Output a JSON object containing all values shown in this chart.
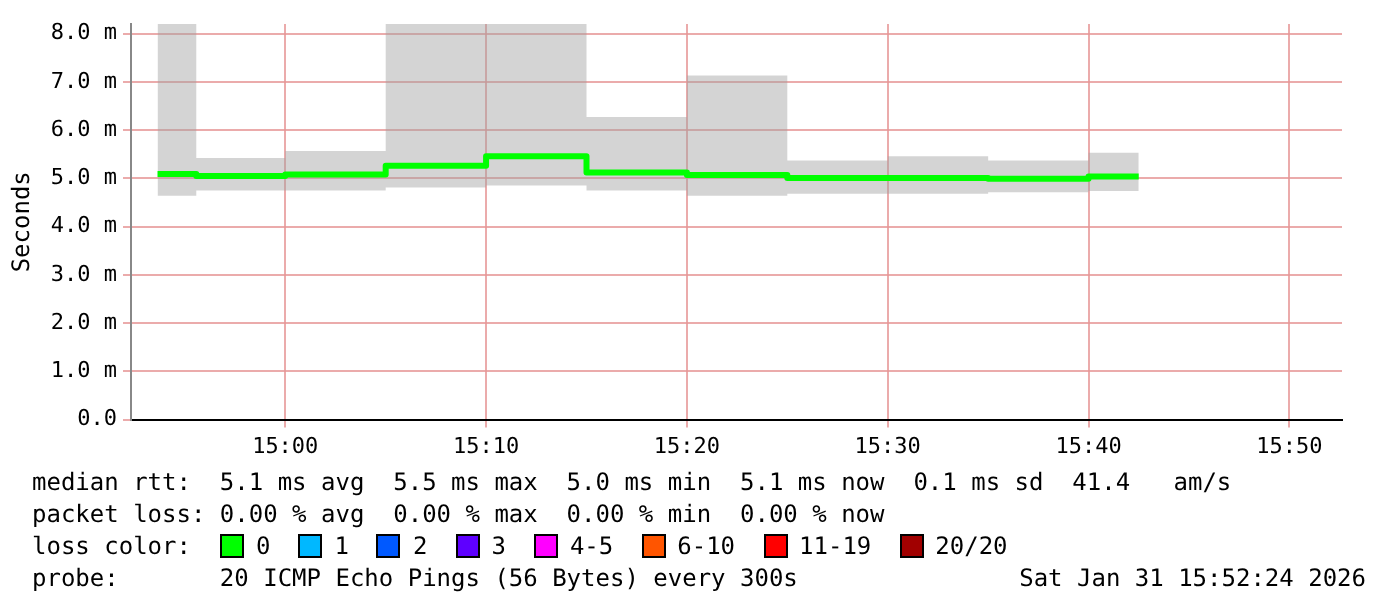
{
  "chart_data": {
    "type": "step",
    "ylabel": "Seconds",
    "x": [
      14.894,
      14.9583,
      15.0417,
      15.125,
      15.2083,
      15.2917,
      15.375,
      15.4583,
      15.5417,
      15.625,
      15.7083
    ],
    "series": [
      {
        "color": "#00ff00",
        "values": [
          5.09,
          5.05,
          5.08,
          5.26,
          5.46,
          5.12,
          5.07,
          5.01,
          5.01,
          4.99,
          5.04
        ],
        "lower": [
          4.64,
          4.75,
          4.75,
          4.81,
          4.85,
          4.75,
          4.64,
          4.68,
          4.68,
          4.71,
          4.74
        ],
        "upper": [
          8.2,
          5.42,
          5.57,
          8.2,
          8.2,
          6.27,
          7.13,
          5.37,
          5.46,
          5.37,
          5.53
        ]
      }
    ],
    "xlim": [
      14.872,
      15.877
    ],
    "xticks": [
      {
        "value": 15.0,
        "label": "15:00"
      },
      {
        "value": 15.1667,
        "label": "15:10"
      },
      {
        "value": 15.3333,
        "label": "15:20"
      },
      {
        "value": 15.5,
        "label": "15:30"
      },
      {
        "value": 15.6667,
        "label": "15:40"
      },
      {
        "value": 15.8333,
        "label": "15:50"
      }
    ],
    "ylim": [
      0,
      8.2
    ],
    "yticks": [
      {
        "value": 0,
        "label": "0.0"
      },
      {
        "value": 1,
        "label": "1.0 m"
      },
      {
        "value": 2,
        "label": "2.0 m"
      },
      {
        "value": 3,
        "label": "3.0 m"
      },
      {
        "value": 4,
        "label": "4.0 m"
      },
      {
        "value": 5,
        "label": "5.0 m"
      },
      {
        "value": 6,
        "label": "6.0 m"
      },
      {
        "value": 7,
        "label": "7.0 m"
      },
      {
        "value": 8,
        "label": "8.0 m"
      }
    ],
    "grid": true,
    "marker": "none",
    "line_style": "solid",
    "legend": false,
    "annotations": [
      "median rtt:  5.1 ms avg  5.5 ms max  5.0 ms min  5.1 ms now  0.1 ms sd  41.4   am/s",
      "packet loss: 0.00 % avg  0.00 % max  0.00 % min  0.00 % now",
      "loss color:",
      "0",
      "1",
      "2",
      "3",
      "4-5",
      "6-10",
      "11-19",
      "20/20",
      "probe:       20 ICMP Echo Pings (56 Bytes) every 300s",
      "Sat Jan 31 15:52:24 2026"
    ]
  }
}
